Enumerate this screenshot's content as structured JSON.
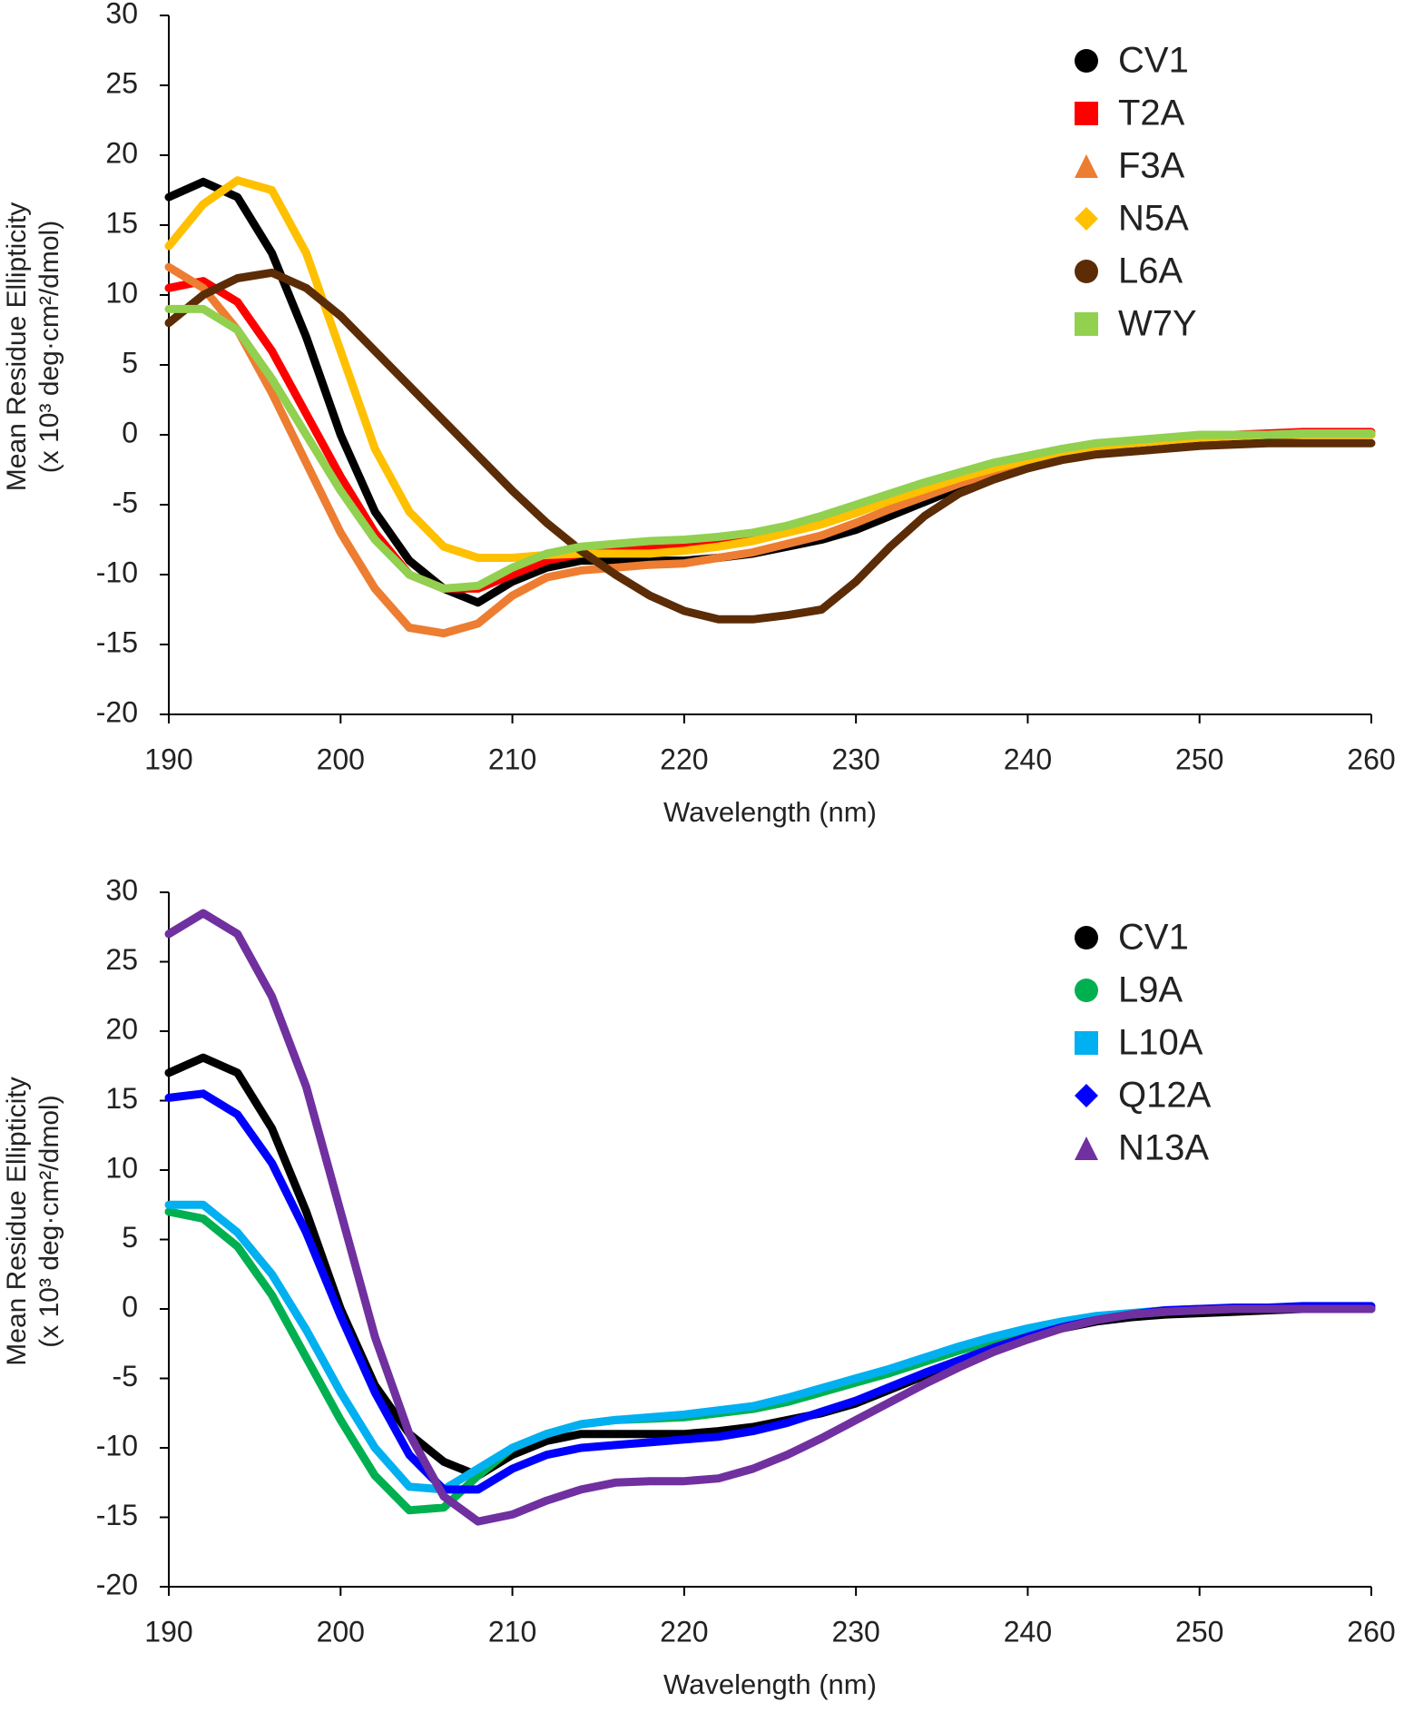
{
  "chart_data": [
    {
      "type": "line",
      "x_label": "Wavelength (nm)",
      "y_label": [
        "Mean Residue Ellipticity",
        "(x 10³ deg·cm²/dmol)"
      ],
      "xlim": [
        190,
        260
      ],
      "ylim": [
        -20,
        30
      ],
      "xticks": [
        190,
        200,
        210,
        220,
        230,
        240,
        250,
        260
      ],
      "yticks": [
        -20,
        -15,
        -10,
        -5,
        0,
        5,
        10,
        15,
        20,
        25,
        30
      ],
      "legend": "upper right",
      "grid": false,
      "x": [
        190,
        192,
        194,
        196,
        198,
        200,
        202,
        204,
        206,
        208,
        210,
        212,
        214,
        216,
        218,
        220,
        222,
        224,
        226,
        228,
        230,
        232,
        234,
        236,
        238,
        240,
        242,
        244,
        246,
        248,
        250,
        252,
        254,
        256,
        258,
        260
      ],
      "series": [
        {
          "name": "CV1",
          "color": "#000000",
          "marker": "circle",
          "values": [
            17,
            18.1,
            17,
            13,
            7,
            0,
            -5.5,
            -9,
            -11,
            -12,
            -10.5,
            -9.5,
            -9,
            -9,
            -9,
            -9,
            -8.8,
            -8.5,
            -8,
            -7.5,
            -6.8,
            -5.8,
            -4.8,
            -3.8,
            -2.8,
            -2,
            -1.4,
            -0.9,
            -0.6,
            -0.4,
            -0.3,
            -0.2,
            -0.1,
            0,
            0,
            0
          ]
        },
        {
          "name": "T2A",
          "color": "#ff0000",
          "marker": "square",
          "values": [
            10.5,
            11,
            9.5,
            6,
            1.5,
            -3,
            -7,
            -10,
            -11,
            -11,
            -10,
            -9,
            -8.5,
            -8,
            -8,
            -7.8,
            -7.5,
            -7.2,
            -6.8,
            -6.2,
            -5.4,
            -4.5,
            -3.7,
            -3,
            -2.3,
            -1.7,
            -1.2,
            -0.8,
            -0.5,
            -0.3,
            -0.2,
            0,
            0.1,
            0.2,
            0.2,
            0.2
          ]
        },
        {
          "name": "F3A",
          "color": "#ed7d31",
          "marker": "triangle",
          "values": [
            12,
            10.5,
            7.5,
            3,
            -2,
            -7,
            -11,
            -13.8,
            -14.2,
            -13.5,
            -11.5,
            -10.2,
            -9.7,
            -9.5,
            -9.3,
            -9.2,
            -8.8,
            -8.4,
            -7.8,
            -7.2,
            -6.3,
            -5.3,
            -4.4,
            -3.5,
            -2.7,
            -2,
            -1.4,
            -0.9,
            -0.6,
            -0.4,
            -0.2,
            -0.1,
            0,
            0.1,
            0.1,
            0.1
          ]
        },
        {
          "name": "N5A",
          "color": "#ffc000",
          "marker": "diamond",
          "values": [
            13.5,
            16.5,
            18.2,
            17.5,
            13,
            6,
            -1,
            -5.5,
            -8,
            -8.8,
            -8.8,
            -8.6,
            -8.5,
            -8.5,
            -8.5,
            -8.3,
            -8,
            -7.6,
            -7,
            -6.4,
            -5.6,
            -4.7,
            -3.9,
            -3.1,
            -2.4,
            -1.8,
            -1.3,
            -0.9,
            -0.6,
            -0.4,
            -0.2,
            -0.1,
            0,
            0,
            0,
            0
          ]
        },
        {
          "name": "L6A",
          "color": "#5b2c06",
          "marker": "circle",
          "values": [
            8,
            10,
            11.2,
            11.6,
            10.5,
            8.5,
            6,
            3.5,
            1,
            -1.5,
            -4,
            -6.3,
            -8.3,
            -10,
            -11.5,
            -12.6,
            -13.2,
            -13.2,
            -12.9,
            -12.5,
            -10.5,
            -8,
            -5.8,
            -4.2,
            -3.2,
            -2.4,
            -1.8,
            -1.4,
            -1.2,
            -1,
            -0.8,
            -0.7,
            -0.6,
            -0.6,
            -0.6,
            -0.6
          ]
        },
        {
          "name": "W7Y",
          "color": "#92d050",
          "marker": "square",
          "values": [
            9,
            9,
            7.5,
            4,
            0,
            -4,
            -7.5,
            -10,
            -11,
            -10.8,
            -9.5,
            -8.5,
            -8,
            -7.8,
            -7.6,
            -7.5,
            -7.3,
            -7,
            -6.5,
            -5.8,
            -5,
            -4.2,
            -3.4,
            -2.7,
            -2,
            -1.5,
            -1,
            -0.6,
            -0.4,
            -0.2,
            0,
            0,
            0,
            0.1,
            0.1,
            0.1
          ]
        }
      ]
    },
    {
      "type": "line",
      "x_label": "Wavelength (nm)",
      "y_label": [
        "Mean Residue Ellipticity",
        "(x 10³ deg·cm²/dmol)"
      ],
      "xlim": [
        190,
        260
      ],
      "ylim": [
        -20,
        30
      ],
      "xticks": [
        190,
        200,
        210,
        220,
        230,
        240,
        250,
        260
      ],
      "yticks": [
        -20,
        -15,
        -10,
        -5,
        0,
        5,
        10,
        15,
        20,
        25,
        30
      ],
      "legend": "upper right",
      "grid": false,
      "x": [
        190,
        192,
        194,
        196,
        198,
        200,
        202,
        204,
        206,
        208,
        210,
        212,
        214,
        216,
        218,
        220,
        222,
        224,
        226,
        228,
        230,
        232,
        234,
        236,
        238,
        240,
        242,
        244,
        246,
        248,
        250,
        252,
        254,
        256,
        258,
        260
      ],
      "series": [
        {
          "name": "CV1",
          "color": "#000000",
          "marker": "circle",
          "values": [
            17,
            18.1,
            17,
            13,
            7,
            0,
            -5.5,
            -9,
            -11,
            -12,
            -10.5,
            -9.5,
            -9,
            -9,
            -9,
            -9,
            -8.8,
            -8.5,
            -8,
            -7.5,
            -6.8,
            -5.8,
            -4.8,
            -3.8,
            -2.8,
            -2,
            -1.4,
            -0.9,
            -0.6,
            -0.4,
            -0.3,
            -0.2,
            -0.1,
            0,
            0,
            0
          ]
        },
        {
          "name": "L9A",
          "color": "#00b050",
          "marker": "circle",
          "values": [
            7,
            6.5,
            4.5,
            1,
            -3.5,
            -8,
            -12,
            -14.5,
            -14.3,
            -12,
            -10,
            -9,
            -8.3,
            -8,
            -7.9,
            -7.8,
            -7.5,
            -7.2,
            -6.7,
            -6,
            -5.3,
            -4.6,
            -3.8,
            -3,
            -2.3,
            -1.7,
            -1.2,
            -0.7,
            -0.4,
            -0.2,
            0,
            0,
            0,
            0,
            0,
            0
          ]
        },
        {
          "name": "L10A",
          "color": "#00b0f0",
          "marker": "square",
          "values": [
            7.5,
            7.5,
            5.5,
            2.5,
            -1.5,
            -6,
            -10,
            -12.8,
            -13,
            -11.5,
            -10,
            -9,
            -8.3,
            -8,
            -7.8,
            -7.6,
            -7.3,
            -7,
            -6.4,
            -5.7,
            -5,
            -4.3,
            -3.5,
            -2.7,
            -2,
            -1.4,
            -0.9,
            -0.5,
            -0.3,
            -0.1,
            0,
            0,
            0,
            0,
            0.1,
            0.1
          ]
        },
        {
          "name": "Q12A",
          "color": "#0000ff",
          "marker": "diamond",
          "values": [
            15.2,
            15.5,
            14,
            10.5,
            5.5,
            -0.5,
            -6,
            -10.5,
            -13,
            -13,
            -11.5,
            -10.5,
            -10,
            -9.8,
            -9.6,
            -9.4,
            -9.2,
            -8.8,
            -8.2,
            -7.4,
            -6.6,
            -5.6,
            -4.6,
            -3.7,
            -2.8,
            -2,
            -1.3,
            -0.8,
            -0.4,
            -0.1,
            0,
            0.1,
            0.1,
            0.2,
            0.2,
            0.2
          ]
        },
        {
          "name": "N13A",
          "color": "#7030a0",
          "marker": "triangle",
          "values": [
            27,
            28.5,
            27,
            22.5,
            16,
            7,
            -2,
            -9,
            -13.5,
            -15.3,
            -14.8,
            -13.8,
            -13,
            -12.5,
            -12.4,
            -12.4,
            -12.2,
            -11.5,
            -10.5,
            -9.3,
            -8,
            -6.7,
            -5.4,
            -4.2,
            -3.1,
            -2.2,
            -1.4,
            -0.8,
            -0.4,
            -0.2,
            -0.1,
            0,
            0,
            0,
            0,
            0
          ]
        }
      ]
    }
  ]
}
